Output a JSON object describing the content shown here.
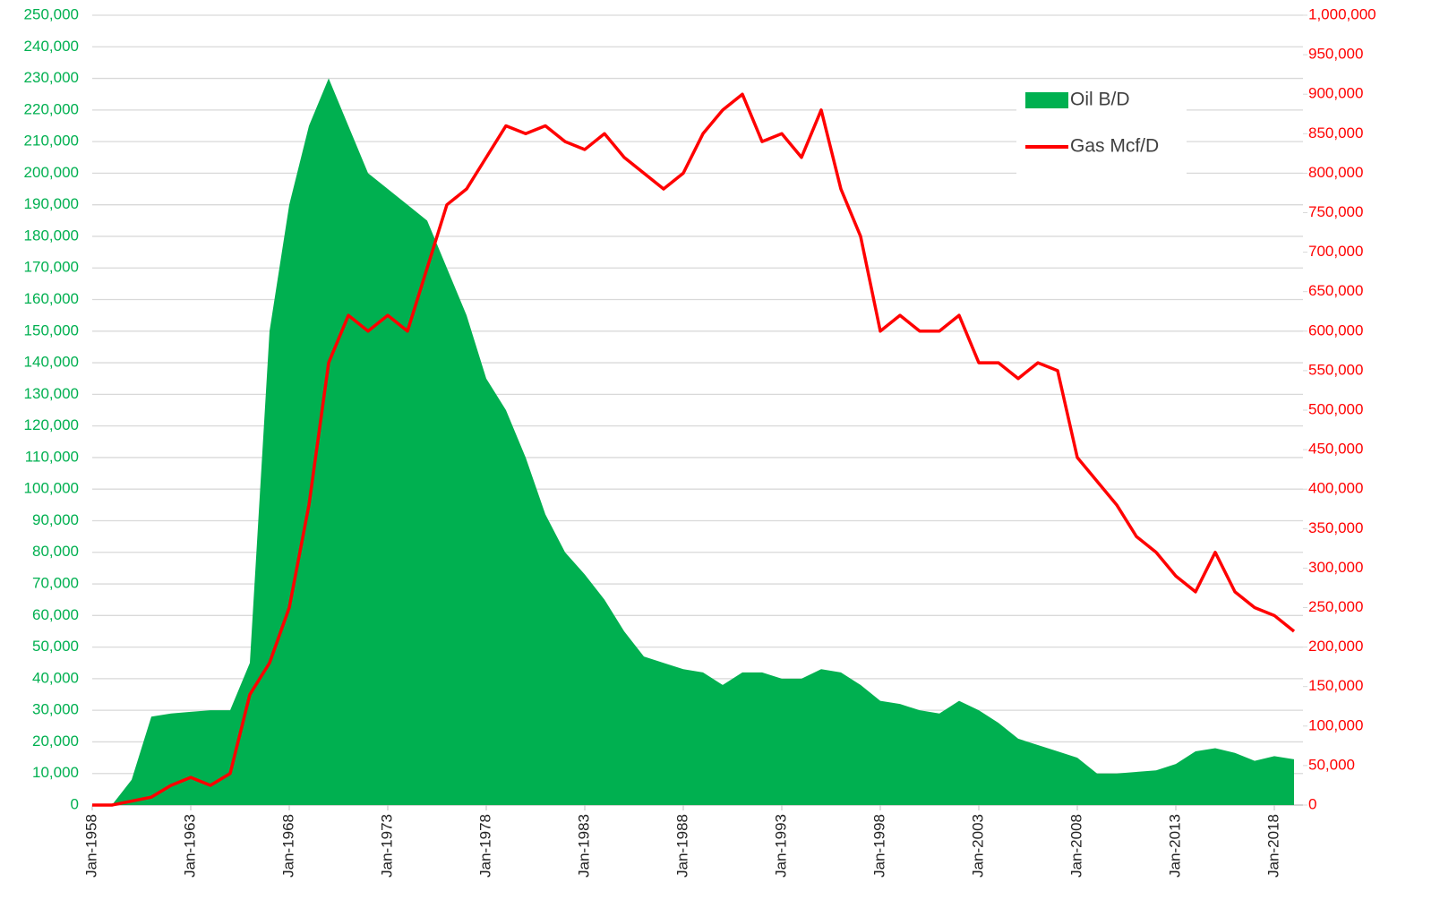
{
  "chart_data": {
    "type": "area-line",
    "categories": [
      "Jan-1958",
      null,
      null,
      null,
      null,
      "Jan-1963",
      null,
      null,
      null,
      null,
      "Jan-1968",
      null,
      null,
      null,
      null,
      "Jan-1973",
      null,
      null,
      null,
      null,
      "Jan-1978",
      null,
      null,
      null,
      null,
      "Jan-1983",
      null,
      null,
      null,
      null,
      "Jan-1988",
      null,
      null,
      null,
      null,
      "Jan-1993",
      null,
      null,
      null,
      null,
      "Jan-1998",
      null,
      null,
      null,
      null,
      "Jan-2003",
      null,
      null,
      null,
      null,
      "Jan-2008",
      null,
      null,
      null,
      null,
      "Jan-2013",
      null,
      null,
      null,
      null,
      "Jan-2018",
      null
    ],
    "series": [
      {
        "name": "Oil B/D",
        "type": "area",
        "color": "#00b050",
        "values": [
          0,
          0,
          8000,
          28000,
          29000,
          29500,
          30000,
          30000,
          45000,
          150000,
          190000,
          215000,
          230000,
          215000,
          200000,
          195000,
          190000,
          185000,
          170000,
          155000,
          135000,
          125000,
          110000,
          92000,
          80000,
          73000,
          65000,
          55000,
          47000,
          45000,
          43000,
          42000,
          38000,
          42000,
          42000,
          40000,
          40000,
          43000,
          42000,
          38000,
          33000,
          32000,
          30000,
          29000,
          33000,
          30000,
          26000,
          21000,
          19000,
          17000,
          15000,
          10000,
          10000,
          10500,
          11000,
          13000,
          17000,
          18000,
          16500,
          14000,
          15500,
          14500
        ]
      },
      {
        "name": "Gas Mcf/D",
        "type": "line",
        "axis": "y2",
        "color": "#ff0000",
        "values": [
          0,
          0,
          5000,
          10000,
          25000,
          35000,
          25000,
          40000,
          140000,
          180000,
          250000,
          380000,
          560000,
          620000,
          600000,
          620000,
          600000,
          680000,
          760000,
          780000,
          820000,
          860000,
          850000,
          860000,
          840000,
          830000,
          850000,
          820000,
          800000,
          780000,
          800000,
          850000,
          880000,
          900000,
          840000,
          850000,
          820000,
          880000,
          780000,
          720000,
          600000,
          620000,
          600000,
          600000,
          620000,
          560000,
          560000,
          540000,
          560000,
          550000,
          440000,
          410000,
          380000,
          340000,
          320000,
          290000,
          270000,
          320000,
          270000,
          250000,
          240000,
          220000
        ]
      }
    ],
    "ylim": [
      0,
      250000
    ],
    "yticks": [
      0,
      {
        "value": 10000,
        "label": "10,000"
      },
      {
        "value": 20000,
        "label": "20,000"
      },
      {
        "value": 30000,
        "label": "30,000"
      },
      {
        "value": 40000,
        "label": "40,000"
      },
      {
        "value": 50000,
        "label": "50,000"
      },
      {
        "value": 60000,
        "label": "60,000"
      },
      {
        "value": 70000,
        "label": "70,000"
      },
      {
        "value": 80000,
        "label": "80,000"
      },
      {
        "value": 90000,
        "label": "90,000"
      },
      {
        "value": 100000,
        "label": "100,000"
      },
      {
        "value": 110000,
        "label": "110,000"
      },
      {
        "value": 120000,
        "label": "120,000"
      },
      {
        "value": 130000,
        "label": "130,000"
      },
      {
        "value": 140000,
        "label": "140,000"
      },
      {
        "value": 150000,
        "label": "150,000"
      },
      {
        "value": 160000,
        "label": "160,000"
      },
      {
        "value": 170000,
        "label": "170,000"
      },
      {
        "value": 180000,
        "label": "180,000"
      },
      {
        "value": 190000,
        "label": "190,000"
      },
      {
        "value": 200000,
        "label": "200,000"
      },
      {
        "value": 210000,
        "label": "210,000"
      },
      {
        "value": 220000,
        "label": "220,000"
      },
      {
        "value": 230000,
        "label": "230,000"
      },
      {
        "value": 240000,
        "label": "240,000"
      },
      {
        "value": 250000,
        "label": "250,000"
      }
    ],
    "y2lim": [
      0,
      1000000
    ],
    "y2ticks": [
      0,
      {
        "value": 50000,
        "label": "50,000"
      },
      {
        "value": 100000,
        "label": "100,000"
      },
      {
        "value": 150000,
        "label": "150,000"
      },
      {
        "value": 200000,
        "label": "200,000"
      },
      {
        "value": 250000,
        "label": "250,000"
      },
      {
        "value": 300000,
        "label": "300,000"
      },
      {
        "value": 350000,
        "label": "350,000"
      },
      {
        "value": 400000,
        "label": "400,000"
      },
      {
        "value": 450000,
        "label": "450,000"
      },
      {
        "value": 500000,
        "label": "500,000"
      },
      {
        "value": 550000,
        "label": "550,000"
      },
      {
        "value": 600000,
        "label": "600,000"
      },
      {
        "value": 650000,
        "label": "650,000"
      },
      {
        "value": 700000,
        "label": "700,000"
      },
      {
        "value": 750000,
        "label": "750,000"
      },
      {
        "value": 800000,
        "label": "800,000"
      },
      {
        "value": 850000,
        "label": "850,000"
      },
      {
        "value": 900000,
        "label": "900,000"
      },
      {
        "value": 950000,
        "label": "950,000"
      },
      {
        "value": 1000000,
        "label": "1,000,000"
      }
    ],
    "grid": true,
    "legend": "upper-right"
  }
}
